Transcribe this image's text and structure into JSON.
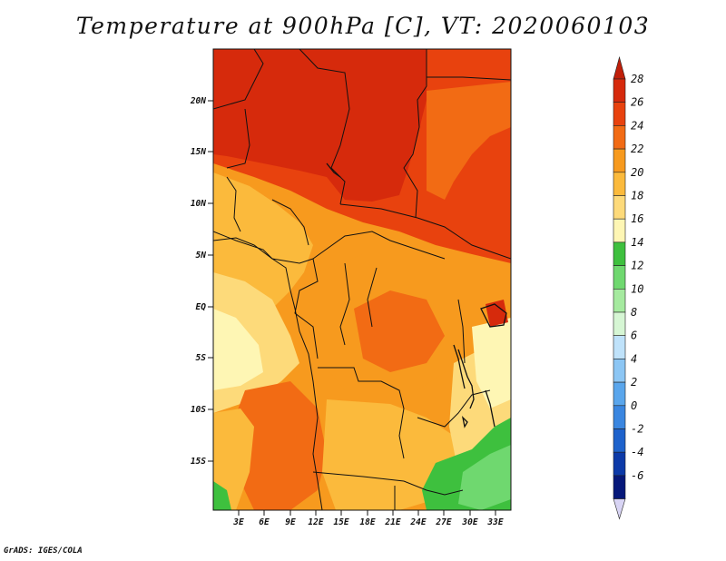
{
  "title": "Temperature at 900hPa [C], VT: 2020060103",
  "credit": "GrADS: IGES/COLA",
  "map": {
    "lat_ticks": [
      "20N",
      "15N",
      "10N",
      "5N",
      "EQ",
      "5S",
      "10S",
      "15S"
    ],
    "lon_ticks": [
      "3E",
      "6E",
      "9E",
      "12E",
      "15E",
      "18E",
      "21E",
      "24E",
      "27E",
      "30E",
      "33E"
    ]
  },
  "colorbar": {
    "levels": [
      "28",
      "26",
      "24",
      "22",
      "20",
      "18",
      "16",
      "14",
      "12",
      "10",
      "8",
      "6",
      "4",
      "2",
      "0",
      "-2",
      "-4",
      "-6"
    ],
    "colors": [
      "#d62a0c",
      "#e8420e",
      "#f26b14",
      "#f79a1e",
      "#fbba3c",
      "#fdda7a",
      "#fef6b4",
      "#3ec03e",
      "#6fd86f",
      "#a5ea9f",
      "#d6f6d4",
      "#bfe2fa",
      "#8cc6f4",
      "#5aa6ec",
      "#3a86e0",
      "#1e62cc",
      "#0c3aa8",
      "#06187a"
    ],
    "top_arrow_color": "#c01f0a",
    "bottom_arrow_color": "#d8d4f4"
  }
}
